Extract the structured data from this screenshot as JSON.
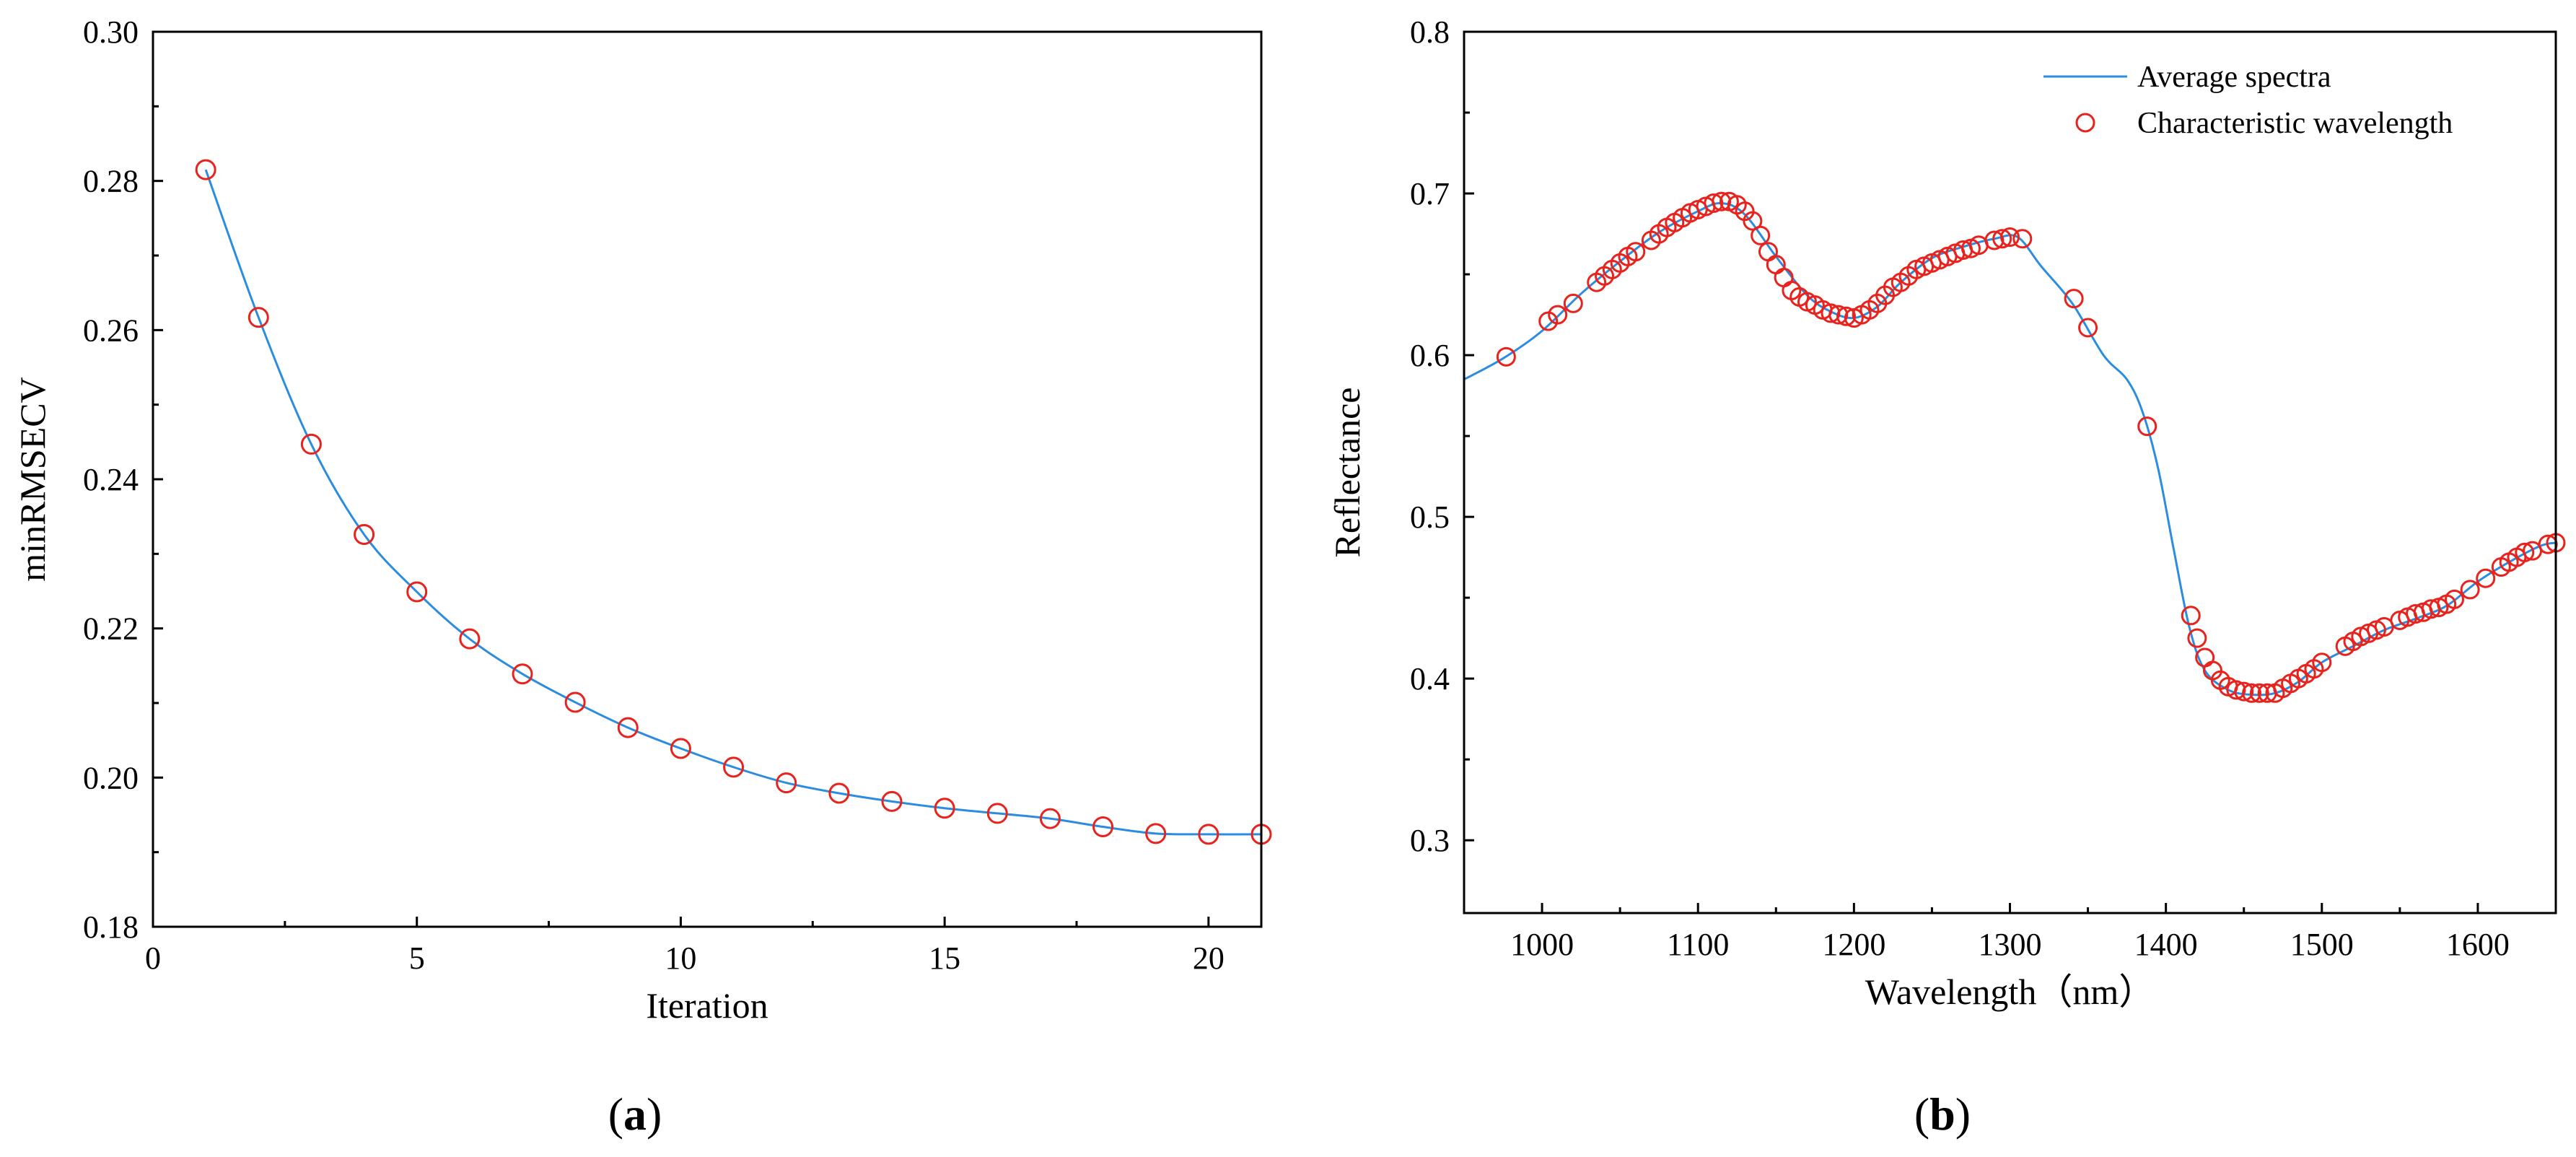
{
  "colors": {
    "line": "#2b8ce0",
    "marker": "#e8231d",
    "axis": "#000000"
  },
  "chart_data": [
    {
      "type": "line",
      "panel": "a",
      "title": "",
      "xlabel": "Iteration",
      "ylabel": "minRMSECV",
      "xlim": [
        0,
        21
      ],
      "ylim": [
        0.18,
        0.3
      ],
      "x_ticks": [
        0,
        5,
        10,
        15,
        20
      ],
      "y_ticks": [
        0.18,
        0.2,
        0.22,
        0.24,
        0.26,
        0.28,
        0.3
      ],
      "x_tick_labels": [
        "0",
        "5",
        "10",
        "15",
        "20"
      ],
      "y_tick_labels": [
        "0.18",
        "0.20",
        "0.22",
        "0.24",
        "0.26",
        "0.28",
        "0.30"
      ],
      "series": [
        {
          "name": "minRMSECV",
          "x": [
            1,
            2,
            3,
            4,
            5,
            6,
            7,
            8,
            9,
            10,
            11,
            12,
            13,
            14,
            15,
            16,
            17,
            18,
            19,
            20,
            21
          ],
          "values": [
            0.2815,
            0.2617,
            0.2447,
            0.2326,
            0.2249,
            0.2186,
            0.2139,
            0.2101,
            0.2067,
            0.2039,
            0.2014,
            0.1993,
            0.1979,
            0.1968,
            0.1959,
            0.1952,
            0.1945,
            0.1934,
            0.1925,
            0.1924,
            0.1924
          ]
        }
      ]
    },
    {
      "type": "line",
      "panel": "b",
      "title": "",
      "xlabel": "Wavelength（nm）",
      "ylabel": "Reflectance",
      "xlim": [
        950,
        1650
      ],
      "ylim": [
        0.255,
        0.8
      ],
      "x_ticks": [
        1000,
        1100,
        1200,
        1300,
        1400,
        1500,
        1600
      ],
      "y_ticks": [
        0.3,
        0.4,
        0.5,
        0.6,
        0.7,
        0.8
      ],
      "x_tick_labels": [
        "1000",
        "1100",
        "1200",
        "1300",
        "1400",
        "1500",
        "1600"
      ],
      "y_tick_labels": [
        "0.3",
        "0.4",
        "0.5",
        "0.6",
        "0.7",
        "0.8"
      ],
      "legend": {
        "position": "top-right",
        "entries": [
          "Average spectra",
          "Characteristic wavelength"
        ]
      },
      "series": [
        {
          "name": "Average spectra",
          "x": [
            950,
            975,
            1000,
            1025,
            1050,
            1075,
            1100,
            1115,
            1130,
            1150,
            1170,
            1185,
            1200,
            1215,
            1230,
            1250,
            1270,
            1290,
            1305,
            1320,
            1340,
            1360,
            1375,
            1385,
            1395,
            1405,
            1415,
            1425,
            1440,
            1455,
            1470,
            1485,
            1500,
            1520,
            1540,
            1560,
            1580,
            1600,
            1620,
            1640,
            1650
          ],
          "values": [
            0.585,
            0.598,
            0.615,
            0.638,
            0.658,
            0.676,
            0.689,
            0.694,
            0.687,
            0.661,
            0.637,
            0.627,
            0.623,
            0.63,
            0.645,
            0.66,
            0.667,
            0.672,
            0.673,
            0.655,
            0.632,
            0.6,
            0.585,
            0.565,
            0.53,
            0.48,
            0.432,
            0.405,
            0.393,
            0.39,
            0.391,
            0.398,
            0.41,
            0.42,
            0.43,
            0.437,
            0.445,
            0.46,
            0.472,
            0.482,
            0.484
          ]
        },
        {
          "name": "Characteristic wavelength",
          "x": [
            977,
            1004,
            1010,
            1020,
            1035,
            1040,
            1045,
            1050,
            1055,
            1060,
            1070,
            1075,
            1080,
            1085,
            1090,
            1095,
            1100,
            1105,
            1110,
            1115,
            1120,
            1125,
            1130,
            1135,
            1140,
            1145,
            1150,
            1155,
            1160,
            1165,
            1170,
            1175,
            1180,
            1185,
            1190,
            1195,
            1200,
            1205,
            1210,
            1215,
            1220,
            1225,
            1230,
            1235,
            1240,
            1245,
            1250,
            1255,
            1260,
            1265,
            1270,
            1275,
            1280,
            1290,
            1295,
            1300,
            1308,
            1341,
            1350,
            1388,
            1416,
            1420,
            1425,
            1430,
            1435,
            1440,
            1445,
            1450,
            1455,
            1460,
            1465,
            1470,
            1475,
            1480,
            1485,
            1490,
            1495,
            1500,
            1515,
            1520,
            1525,
            1530,
            1535,
            1540,
            1550,
            1555,
            1560,
            1565,
            1570,
            1575,
            1580,
            1585,
            1595,
            1605,
            1615,
            1620,
            1625,
            1630,
            1635,
            1645,
            1650
          ],
          "values": [
            0.599,
            0.621,
            0.625,
            0.632,
            0.645,
            0.649,
            0.653,
            0.657,
            0.661,
            0.664,
            0.671,
            0.675,
            0.679,
            0.682,
            0.685,
            0.688,
            0.69,
            0.692,
            0.694,
            0.695,
            0.695,
            0.693,
            0.689,
            0.683,
            0.674,
            0.664,
            0.656,
            0.648,
            0.64,
            0.636,
            0.633,
            0.631,
            0.628,
            0.626,
            0.625,
            0.624,
            0.623,
            0.625,
            0.628,
            0.632,
            0.637,
            0.642,
            0.645,
            0.649,
            0.653,
            0.655,
            0.657,
            0.659,
            0.661,
            0.663,
            0.665,
            0.666,
            0.668,
            0.671,
            0.672,
            0.673,
            0.672,
            0.635,
            0.617,
            0.556,
            0.439,
            0.425,
            0.413,
            0.405,
            0.399,
            0.395,
            0.393,
            0.392,
            0.391,
            0.391,
            0.391,
            0.391,
            0.394,
            0.397,
            0.4,
            0.403,
            0.406,
            0.41,
            0.42,
            0.423,
            0.426,
            0.428,
            0.43,
            0.432,
            0.436,
            0.438,
            0.44,
            0.441,
            0.443,
            0.444,
            0.446,
            0.449,
            0.455,
            0.462,
            0.469,
            0.472,
            0.475,
            0.478,
            0.479,
            0.483,
            0.484
          ]
        }
      ]
    }
  ],
  "panel_labels": [
    {
      "open": "(",
      "letter": "a",
      "close": ")"
    },
    {
      "open": "(",
      "letter": "b",
      "close": ")"
    }
  ]
}
